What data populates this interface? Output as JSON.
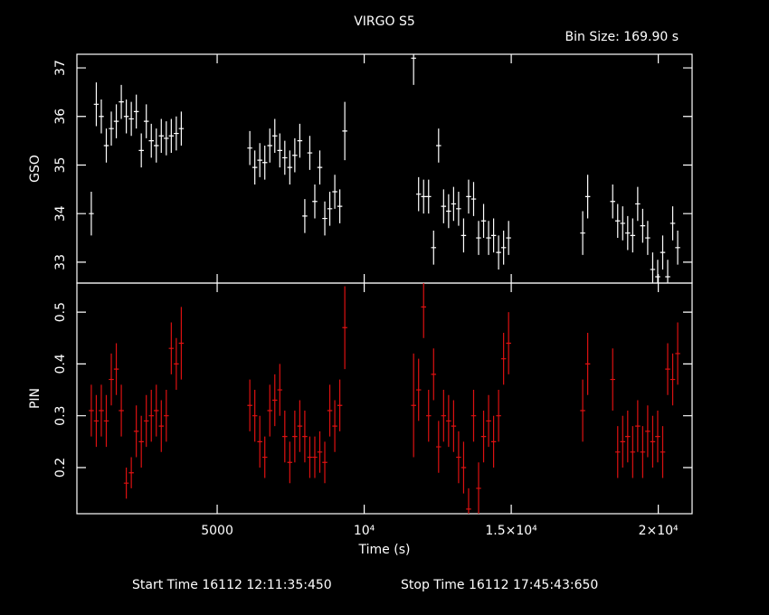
{
  "title": "VIRGO S5",
  "bin_size": "Bin Size: 169.90 s",
  "start_time": "Start Time 16112 12:11:35:450",
  "stop_time": "Stop Time 16112 17:45:43:650",
  "chart_data": [
    {
      "type": "errorbar",
      "ylabel": "GSO",
      "color": "#ffffff",
      "xerr": 85,
      "xlim": [
        230,
        21150
      ],
      "xticks": [
        {
          "value": 5000,
          "label": "5000"
        },
        {
          "value": 10000,
          "label": "10⁴"
        },
        {
          "value": 15000,
          "label": "1.5×10⁴"
        },
        {
          "value": 20000,
          "label": "2×10⁴"
        }
      ],
      "ylim": [
        32.57,
        37.28
      ],
      "yticks": [
        33,
        34,
        35,
        36,
        37
      ],
      "x": [
        720,
        890,
        1060,
        1230,
        1400,
        1570,
        1740,
        1910,
        2080,
        2250,
        2420,
        2590,
        2760,
        2930,
        3100,
        3270,
        3440,
        3610,
        3780,
        6110,
        6280,
        6450,
        6620,
        6790,
        6960,
        7130,
        7300,
        7470,
        7640,
        7810,
        7980,
        8150,
        8320,
        8490,
        8660,
        8830,
        9000,
        9170,
        9340,
        11680,
        11850,
        12020,
        12190,
        12360,
        12530,
        12700,
        12870,
        13040,
        13210,
        13380,
        13550,
        13720,
        13890,
        14060,
        14230,
        14400,
        14570,
        14740,
        14910,
        17430,
        17600,
        18450,
        18620,
        18790,
        18960,
        19130,
        19300,
        19470,
        19640,
        19810,
        19980,
        20150,
        20320,
        20490,
        20660
      ],
      "values": [
        34.0,
        36.25,
        36.0,
        35.4,
        35.75,
        35.9,
        36.3,
        36.0,
        35.95,
        36.1,
        35.3,
        35.9,
        35.5,
        35.4,
        35.6,
        35.55,
        35.6,
        35.65,
        35.75,
        35.35,
        34.95,
        35.1,
        35.05,
        35.4,
        35.6,
        35.3,
        35.15,
        34.95,
        35.2,
        35.5,
        33.95,
        35.25,
        34.25,
        34.95,
        33.9,
        34.1,
        34.45,
        34.15,
        35.7,
        37.2,
        34.4,
        34.35,
        34.35,
        33.3,
        35.4,
        34.15,
        34.05,
        34.2,
        34.1,
        33.55,
        34.35,
        34.3,
        33.5,
        33.85,
        33.5,
        33.55,
        33.2,
        33.3,
        33.5,
        33.6,
        34.35,
        34.25,
        33.85,
        33.8,
        33.6,
        33.55,
        34.2,
        33.75,
        33.5,
        32.85,
        32.7,
        33.2,
        32.7,
        33.8,
        33.3
      ],
      "errors": [
        0.45,
        0.45,
        0.35,
        0.35,
        0.35,
        0.35,
        0.35,
        0.35,
        0.35,
        0.35,
        0.35,
        0.35,
        0.35,
        0.35,
        0.35,
        0.35,
        0.35,
        0.35,
        0.35,
        0.35,
        0.35,
        0.35,
        0.35,
        0.35,
        0.35,
        0.35,
        0.35,
        0.35,
        0.35,
        0.35,
        0.35,
        0.35,
        0.35,
        0.35,
        0.35,
        0.35,
        0.35,
        0.35,
        0.6,
        0.55,
        0.35,
        0.35,
        0.35,
        0.35,
        0.35,
        0.35,
        0.35,
        0.35,
        0.35,
        0.35,
        0.35,
        0.35,
        0.35,
        0.35,
        0.35,
        0.35,
        0.35,
        0.35,
        0.35,
        0.45,
        0.45,
        0.35,
        0.35,
        0.35,
        0.35,
        0.35,
        0.35,
        0.35,
        0.35,
        0.35,
        0.35,
        0.35,
        0.35,
        0.35,
        0.35
      ]
    },
    {
      "type": "errorbar",
      "ylabel": "PIN",
      "xlabel": "Time (s)",
      "color": "#dd1111",
      "xerr": 85,
      "xlim": [
        230,
        21150
      ],
      "xticks": [
        {
          "value": 5000,
          "label": "5000"
        },
        {
          "value": 10000,
          "label": "10⁴"
        },
        {
          "value": 15000,
          "label": "1.5×10⁴"
        },
        {
          "value": 20000,
          "label": "2×10⁴"
        }
      ],
      "ylim": [
        0.111,
        0.556
      ],
      "yticks": [
        0.2,
        0.3,
        0.4,
        0.5
      ],
      "x": [
        720,
        890,
        1060,
        1230,
        1400,
        1570,
        1740,
        1910,
        2080,
        2250,
        2420,
        2590,
        2760,
        2930,
        3100,
        3270,
        3440,
        3610,
        3780,
        6110,
        6280,
        6450,
        6620,
        6790,
        6960,
        7130,
        7300,
        7470,
        7640,
        7810,
        7980,
        8150,
        8320,
        8490,
        8660,
        8830,
        9000,
        9170,
        9340,
        11680,
        11850,
        12020,
        12190,
        12360,
        12530,
        12700,
        12870,
        13040,
        13210,
        13380,
        13550,
        13720,
        13890,
        14060,
        14230,
        14400,
        14570,
        14740,
        14910,
        17430,
        17600,
        18450,
        18620,
        18790,
        18960,
        19130,
        19300,
        19470,
        19640,
        19810,
        19980,
        20150,
        20320,
        20490,
        20660
      ],
      "values": [
        0.31,
        0.29,
        0.31,
        0.29,
        0.37,
        0.39,
        0.31,
        0.17,
        0.19,
        0.27,
        0.25,
        0.29,
        0.3,
        0.31,
        0.28,
        0.3,
        0.43,
        0.4,
        0.44,
        0.32,
        0.3,
        0.25,
        0.22,
        0.31,
        0.33,
        0.35,
        0.26,
        0.21,
        0.26,
        0.28,
        0.26,
        0.22,
        0.22,
        0.23,
        0.21,
        0.31,
        0.28,
        0.32,
        0.47,
        0.32,
        0.35,
        0.51,
        0.3,
        0.38,
        0.24,
        0.3,
        0.29,
        0.28,
        0.22,
        0.2,
        0.12,
        0.3,
        0.16,
        0.26,
        0.29,
        0.25,
        0.3,
        0.41,
        0.44,
        0.31,
        0.4,
        0.37,
        0.23,
        0.25,
        0.26,
        0.23,
        0.28,
        0.23,
        0.27,
        0.25,
        0.26,
        0.23,
        0.39,
        0.37,
        0.42
      ],
      "errors": [
        0.05,
        0.05,
        0.05,
        0.05,
        0.05,
        0.05,
        0.05,
        0.03,
        0.03,
        0.05,
        0.05,
        0.05,
        0.05,
        0.05,
        0.05,
        0.05,
        0.05,
        0.05,
        0.07,
        0.05,
        0.05,
        0.05,
        0.04,
        0.05,
        0.05,
        0.05,
        0.05,
        0.04,
        0.05,
        0.05,
        0.05,
        0.04,
        0.04,
        0.04,
        0.04,
        0.05,
        0.05,
        0.05,
        0.08,
        0.1,
        0.06,
        0.06,
        0.05,
        0.05,
        0.05,
        0.05,
        0.05,
        0.05,
        0.05,
        0.05,
        0.04,
        0.05,
        0.05,
        0.05,
        0.05,
        0.05,
        0.05,
        0.05,
        0.06,
        0.06,
        0.06,
        0.06,
        0.05,
        0.05,
        0.05,
        0.05,
        0.05,
        0.05,
        0.05,
        0.05,
        0.05,
        0.05,
        0.05,
        0.05,
        0.06
      ]
    }
  ]
}
